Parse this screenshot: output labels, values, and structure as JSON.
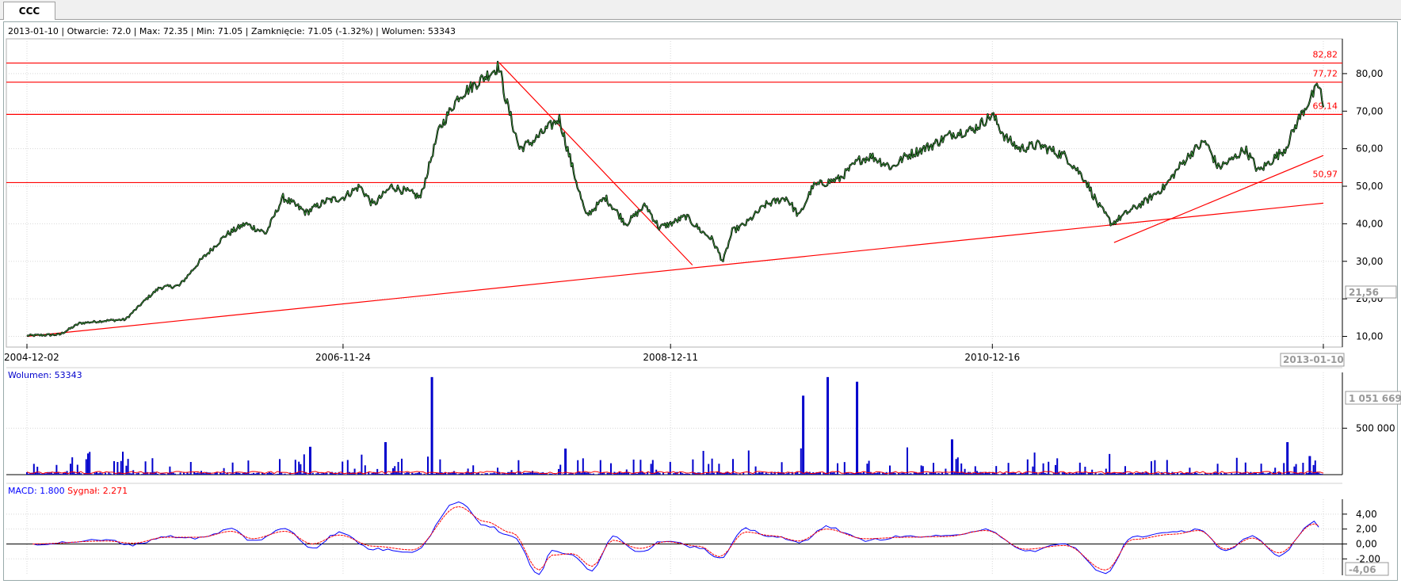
{
  "tab": {
    "label": "CCC"
  },
  "info": {
    "date": "2013-01-10",
    "open_label": "Otwarcie: 72.0",
    "max_label": "Max: 72.35",
    "min_label": "Min: 71.05",
    "close_label": "Zamknięcie: 71.05 (-1.32%)",
    "volume_label": "Wolumen: 53343"
  },
  "volume_panel": {
    "label": "Wolumen: 53343",
    "cursor_value": "1 051 669"
  },
  "macd_panel": {
    "macd_label": "MACD: 1.800",
    "signal_label": "Sygnał: 2.271",
    "cursor_value": "-4,06"
  },
  "price_panel": {
    "cursor_value": "21,56",
    "cursor_date": "2013-01-10"
  },
  "colors": {
    "price": "#1a5c1a",
    "price_shadow": "#000000",
    "line": "#ff0000",
    "volume": "#0000cc",
    "volume_ma": "#ff0000",
    "macd": "#0000ff",
    "signal": "#ff0000"
  },
  "chart_data": [
    {
      "type": "line",
      "title": "",
      "x_ticks": [
        "2004-12-02",
        "2006-11-24",
        "2008-12-11",
        "2010-12-16",
        "2013-01-10"
      ],
      "y_ticks": [
        "10,00",
        "20,00",
        "30,00",
        "40,00",
        "50,00",
        "60,00",
        "70,00",
        "80,00"
      ],
      "ylim": [
        8,
        88
      ],
      "series": [
        {
          "values_key": "price",
          "points": [
            [
              "2004-12-02",
              10.2
            ],
            [
              "2005-02-15",
              10.5
            ],
            [
              "2005-04-01",
              13.5
            ],
            [
              "2005-06-01",
              14.2
            ],
            [
              "2005-07-15",
              14.5
            ],
            [
              "2005-09-01",
              20
            ],
            [
              "2005-10-01",
              23
            ],
            [
              "2005-11-15",
              23.5
            ],
            [
              "2006-01-01",
              30
            ],
            [
              "2006-03-01",
              37
            ],
            [
              "2006-04-15",
              40
            ],
            [
              "2006-06-01",
              37.5
            ],
            [
              "2006-07-10",
              47
            ],
            [
              "2006-09-01",
              43
            ],
            [
              "2006-10-15",
              46
            ],
            [
              "2006-11-24",
              47
            ],
            [
              "2007-01-01",
              50
            ],
            [
              "2007-02-01",
              45
            ],
            [
              "2007-03-15",
              50
            ],
            [
              "2007-05-01",
              48
            ],
            [
              "2007-05-20",
              47
            ],
            [
              "2007-07-01",
              65
            ],
            [
              "2007-08-15",
              74
            ],
            [
              "2007-10-01",
              78
            ],
            [
              "2007-11-15",
              82
            ],
            [
              "2007-12-01",
              73
            ],
            [
              "2008-01-01",
              60
            ],
            [
              "2008-02-01",
              62
            ],
            [
              "2008-03-01",
              65
            ],
            [
              "2008-04-01",
              68
            ],
            [
              "2008-05-01",
              55
            ],
            [
              "2008-06-01",
              42
            ],
            [
              "2008-07-15",
              47
            ],
            [
              "2008-09-01",
              40
            ],
            [
              "2008-10-15",
              45
            ],
            [
              "2008-11-15",
              39
            ],
            [
              "2008-12-11",
              40
            ],
            [
              "2009-01-15",
              42
            ],
            [
              "2009-02-20",
              38
            ],
            [
              "2009-03-15",
              36
            ],
            [
              "2009-04-10",
              30
            ],
            [
              "2009-05-01",
              38
            ],
            [
              "2009-06-01",
              40
            ],
            [
              "2009-07-15",
              45
            ],
            [
              "2009-09-01",
              47
            ],
            [
              "2009-10-01",
              42
            ],
            [
              "2009-11-01",
              50
            ],
            [
              "2010-01-01",
              52
            ],
            [
              "2010-02-15",
              57
            ],
            [
              "2010-03-15",
              58
            ],
            [
              "2010-05-01",
              55
            ],
            [
              "2010-06-01",
              58
            ],
            [
              "2010-08-01",
              61
            ],
            [
              "2010-09-15",
              64
            ],
            [
              "2010-11-01",
              65
            ],
            [
              "2010-12-16",
              69
            ],
            [
              "2011-01-15",
              63
            ],
            [
              "2011-02-15",
              60
            ],
            [
              "2011-04-01",
              61
            ],
            [
              "2011-06-01",
              58
            ],
            [
              "2011-07-15",
              52
            ],
            [
              "2011-08-15",
              45
            ],
            [
              "2011-09-15",
              40
            ],
            [
              "2011-10-20",
              43
            ],
            [
              "2011-12-01",
              46
            ],
            [
              "2012-01-15",
              50
            ],
            [
              "2012-02-15",
              55
            ],
            [
              "2012-03-15",
              59
            ],
            [
              "2012-04-15",
              62
            ],
            [
              "2012-05-15",
              55
            ],
            [
              "2012-06-15",
              57
            ],
            [
              "2012-07-15",
              60
            ],
            [
              "2012-08-15",
              54
            ],
            [
              "2012-09-15",
              57
            ],
            [
              "2012-10-15",
              60
            ],
            [
              "2012-11-15",
              68
            ],
            [
              "2012-12-15",
              74
            ],
            [
              "2013-01-01",
              77
            ],
            [
              "2013-01-10",
              71.05
            ]
          ]
        }
      ],
      "horizontal_lines": [
        {
          "value": 82.82,
          "label": "82,82"
        },
        {
          "value": 77.72,
          "label": "77,72"
        },
        {
          "value": 69.14,
          "label": "69,14"
        },
        {
          "value": 50.97,
          "label": "50,97"
        }
      ],
      "trend_lines": [
        {
          "from": [
            "2004-12-02",
            10
          ],
          "to": [
            "2013-01-10",
            45.5
          ]
        },
        {
          "from": [
            "2007-11-15",
            83
          ],
          "to": [
            "2009-01-30",
            29
          ]
        },
        {
          "from": [
            "2011-09-20",
            35
          ],
          "to": [
            "2013-01-10",
            58.2
          ]
        }
      ]
    },
    {
      "type": "bar",
      "title": "Wolumen: 53343",
      "y_ticks": [
        "500 000"
      ],
      "ylim": [
        0,
        1100000
      ],
      "spikes": [
        [
          "2007-06-15",
          1050000
        ],
        [
          "2009-10-10",
          850000
        ],
        [
          "2009-12-05",
          1050000
        ],
        [
          "2010-02-10",
          1000000
        ],
        [
          "2010-09-15",
          380000
        ],
        [
          "2012-10-20",
          350000
        ],
        [
          "2007-03-01",
          350000
        ],
        [
          "2006-09-10",
          300000
        ],
        [
          "2008-04-15",
          280000
        ],
        [
          "2012-12-10",
          200000
        ]
      ]
    },
    {
      "type": "line",
      "title": "MACD",
      "y_ticks": [
        "4,00",
        "2,00",
        "0,00",
        "-2,00"
      ],
      "ylim": [
        -4.2,
        6
      ],
      "series": [
        {
          "name": "MACD",
          "points": [
            [
              "2004-12-15",
              0
            ],
            [
              "2005-06-01",
              0.5
            ],
            [
              "2005-08-01",
              -0.1
            ],
            [
              "2005-10-15",
              1
            ],
            [
              "2006-01-01",
              0.8
            ],
            [
              "2006-03-15",
              2
            ],
            [
              "2006-05-01",
              0.4
            ],
            [
              "2006-07-15",
              2
            ],
            [
              "2006-09-15",
              -0.5
            ],
            [
              "2006-11-15",
              1.5
            ],
            [
              "2007-02-01",
              -0.7
            ],
            [
              "2007-05-01",
              -1
            ],
            [
              "2007-08-15",
              5.7
            ],
            [
              "2007-10-15",
              2.5
            ],
            [
              "2007-12-15",
              1
            ],
            [
              "2008-02-15",
              -4
            ],
            [
              "2008-03-15",
              -1
            ],
            [
              "2008-05-01",
              -1.5
            ],
            [
              "2008-06-15",
              -3.5
            ],
            [
              "2008-08-01",
              1
            ],
            [
              "2008-10-01",
              -1
            ],
            [
              "2008-12-01",
              0.5
            ],
            [
              "2009-02-15",
              -0.5
            ],
            [
              "2009-04-01",
              -2
            ],
            [
              "2009-06-01",
              2
            ],
            [
              "2009-08-01",
              1
            ],
            [
              "2009-10-01",
              0.2
            ],
            [
              "2009-12-01",
              2.3
            ],
            [
              "2010-03-01",
              0.5
            ],
            [
              "2010-06-01",
              1
            ],
            [
              "2010-09-01",
              1
            ],
            [
              "2010-12-01",
              2
            ],
            [
              "2011-03-01",
              -1
            ],
            [
              "2011-06-01",
              0
            ],
            [
              "2011-09-01",
              -4
            ],
            [
              "2011-11-01",
              1
            ],
            [
              "2012-02-01",
              1.5
            ],
            [
              "2012-04-01",
              2
            ],
            [
              "2012-06-01",
              -1
            ],
            [
              "2012-08-01",
              1
            ],
            [
              "2012-10-01",
              -1.5
            ],
            [
              "2012-12-20",
              3
            ],
            [
              "2013-01-10",
              1.8
            ]
          ]
        },
        {
          "name": "Sygnał",
          "points": [
            [
              "2004-12-15",
              0
            ],
            [
              "2005-06-01",
              0.4
            ],
            [
              "2005-08-01",
              0.1
            ],
            [
              "2005-10-15",
              0.9
            ],
            [
              "2006-01-01",
              0.9
            ],
            [
              "2006-03-15",
              1.7
            ],
            [
              "2006-05-01",
              0.7
            ],
            [
              "2006-07-15",
              1.7
            ],
            [
              "2006-09-15",
              0
            ],
            [
              "2006-11-15",
              1.2
            ],
            [
              "2007-02-01",
              -0.3
            ],
            [
              "2007-05-01",
              -0.8
            ],
            [
              "2007-08-15",
              5
            ],
            [
              "2007-10-15",
              3
            ],
            [
              "2007-12-15",
              1.5
            ],
            [
              "2008-02-15",
              -3.5
            ],
            [
              "2008-03-15",
              -1.5
            ],
            [
              "2008-05-01",
              -1.3
            ],
            [
              "2008-06-15",
              -3
            ],
            [
              "2008-08-01",
              0.5
            ],
            [
              "2008-10-01",
              -0.6
            ],
            [
              "2008-12-01",
              0.3
            ],
            [
              "2009-02-15",
              -0.3
            ],
            [
              "2009-04-01",
              -1.7
            ],
            [
              "2009-06-01",
              1.6
            ],
            [
              "2009-08-01",
              1.1
            ],
            [
              "2009-10-01",
              0.4
            ],
            [
              "2009-12-01",
              2
            ],
            [
              "2010-03-01",
              0.7
            ],
            [
              "2010-06-01",
              0.9
            ],
            [
              "2010-09-01",
              1
            ],
            [
              "2010-12-01",
              1.8
            ],
            [
              "2011-03-01",
              -0.7
            ],
            [
              "2011-06-01",
              -0.2
            ],
            [
              "2011-09-01",
              -3.5
            ],
            [
              "2011-11-01",
              0.6
            ],
            [
              "2012-02-01",
              1.3
            ],
            [
              "2012-04-01",
              1.8
            ],
            [
              "2012-06-01",
              -0.7
            ],
            [
              "2012-08-01",
              0.8
            ],
            [
              "2012-10-01",
              -1.2
            ],
            [
              "2012-12-20",
              2.7
            ],
            [
              "2013-01-10",
              2.271
            ]
          ]
        }
      ]
    }
  ]
}
